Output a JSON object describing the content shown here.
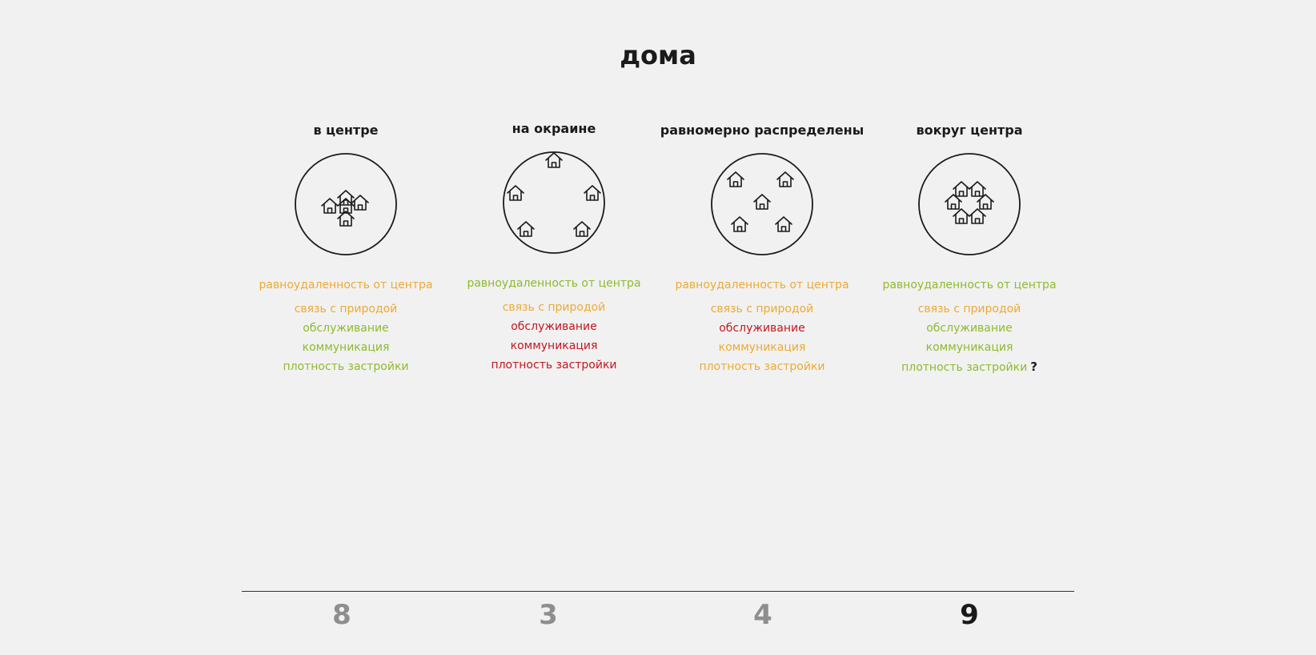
{
  "title": "дома",
  "colors": {
    "good": "#8fba2d",
    "medium": "#eeaa33",
    "bad": "#c4171f",
    "score": "#8e8e8e",
    "score_best": "#1a1a1a"
  },
  "icon": "house-icon",
  "columns": [
    {
      "heading": "в центре",
      "houses": 5,
      "criteria": [
        {
          "label": "равноудаленность от центра",
          "rating": "medium"
        },
        {
          "label": "связь с природой",
          "rating": "medium"
        },
        {
          "label": "обслуживание",
          "rating": "good"
        },
        {
          "label": "коммуникация",
          "rating": "good"
        },
        {
          "label": "плотность застройки",
          "rating": "good"
        }
      ],
      "score": "8"
    },
    {
      "heading": "на окраине",
      "houses": 5,
      "criteria": [
        {
          "label": "равноудаленность от центра",
          "rating": "good"
        },
        {
          "label": "связь с природой",
          "rating": "medium"
        },
        {
          "label": "обслуживание",
          "rating": "bad"
        },
        {
          "label": "коммуникация",
          "rating": "bad"
        },
        {
          "label": "плотность застройки",
          "rating": "bad"
        }
      ],
      "score": "3"
    },
    {
      "heading": "равномерно распределены",
      "houses": 5,
      "criteria": [
        {
          "label": "равноудаленность от центра",
          "rating": "medium"
        },
        {
          "label": "связь с природой",
          "rating": "medium"
        },
        {
          "label": "обслуживание",
          "rating": "bad"
        },
        {
          "label": "коммуникация",
          "rating": "medium"
        },
        {
          "label": "плотность застройки",
          "rating": "medium"
        }
      ],
      "score": "4"
    },
    {
      "heading": "вокруг центра",
      "houses": 6,
      "criteria": [
        {
          "label": "равноудаленность от центра",
          "rating": "good"
        },
        {
          "label": "связь с природой",
          "rating": "medium"
        },
        {
          "label": "обслуживание",
          "rating": "good"
        },
        {
          "label": "коммуникация",
          "rating": "good"
        },
        {
          "label": "плотность застройки",
          "rating": "good"
        }
      ],
      "question_mark": "?",
      "score": "9",
      "best": true
    }
  ]
}
